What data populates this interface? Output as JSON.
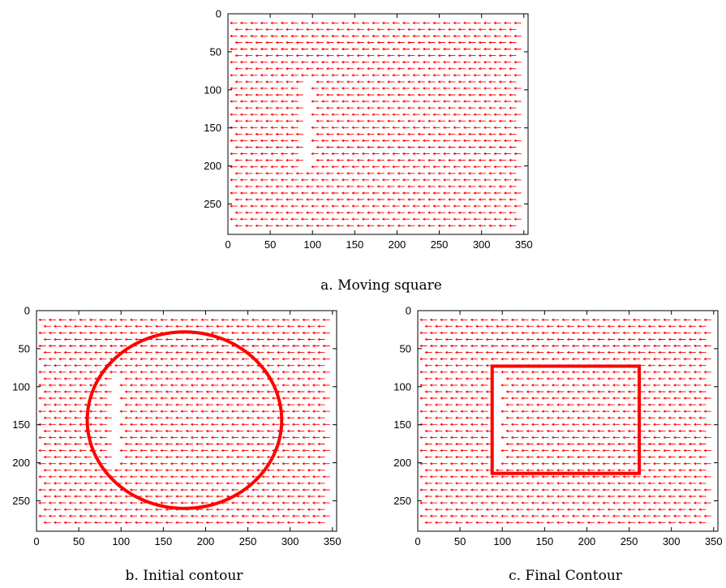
{
  "figure": {
    "panels": [
      {
        "id": "a",
        "caption": "a. Moving square",
        "chart_data": {
          "type": "scatter",
          "title": "",
          "xlabel": "",
          "ylabel": "",
          "xlim": [
            0,
            355
          ],
          "ylim": [
            0,
            290
          ],
          "y_inverted": true,
          "x_ticks": [
            0,
            50,
            100,
            150,
            200,
            250,
            300,
            350
          ],
          "y_ticks": [
            0,
            50,
            100,
            150,
            200,
            250
          ],
          "grid": false,
          "vector_field": {
            "direction": "left",
            "color": "#ff0000",
            "row_y_start": 12,
            "row_y_step": 8.6,
            "row_y_end": 280,
            "dash_length": 8,
            "dash_step": 12,
            "gap_x_range": [
              88,
              96
            ],
            "gap_y_range": [
              85,
              205
            ]
          },
          "contour": null
        }
      },
      {
        "id": "b",
        "caption": "b.  Initial contour",
        "chart_data": {
          "type": "scatter",
          "title": "",
          "xlabel": "",
          "ylabel": "",
          "xlim": [
            0,
            355
          ],
          "ylim": [
            0,
            290
          ],
          "y_inverted": true,
          "x_ticks": [
            0,
            50,
            100,
            150,
            200,
            250,
            300,
            350
          ],
          "y_ticks": [
            0,
            50,
            100,
            150,
            200,
            250
          ],
          "grid": false,
          "vector_field": {
            "direction": "left",
            "color": "#ff0000",
            "row_y_start": 12,
            "row_y_step": 8.6,
            "row_y_end": 280,
            "dash_length": 8,
            "dash_step": 12,
            "gap_x_range": [
              88,
              96
            ],
            "gap_y_range": [
              85,
              205
            ]
          },
          "contour": {
            "shape": "ellipse",
            "cx": 175,
            "cy": 144,
            "rx": 115,
            "ry": 116,
            "color": "#ff0000"
          }
        }
      },
      {
        "id": "c",
        "caption": "c. Final Contour",
        "chart_data": {
          "type": "scatter",
          "title": "",
          "xlabel": "",
          "ylabel": "",
          "xlim": [
            0,
            355
          ],
          "ylim": [
            0,
            290
          ],
          "y_inverted": true,
          "x_ticks": [
            0,
            50,
            100,
            150,
            200,
            250,
            300,
            350
          ],
          "y_ticks": [
            0,
            50,
            100,
            150,
            200,
            250
          ],
          "grid": false,
          "vector_field": {
            "direction": "left",
            "color": "#ff0000",
            "row_y_start": 12,
            "row_y_step": 8.6,
            "row_y_end": 280,
            "dash_length": 8,
            "dash_step": 12,
            "gap_x_range": [
              88,
              96
            ],
            "gap_y_range": [
              85,
              205
            ]
          },
          "contour": {
            "shape": "rect",
            "x0": 88,
            "y0": 73,
            "x1": 262,
            "y1": 214,
            "color": "#ff0000"
          }
        }
      }
    ]
  }
}
